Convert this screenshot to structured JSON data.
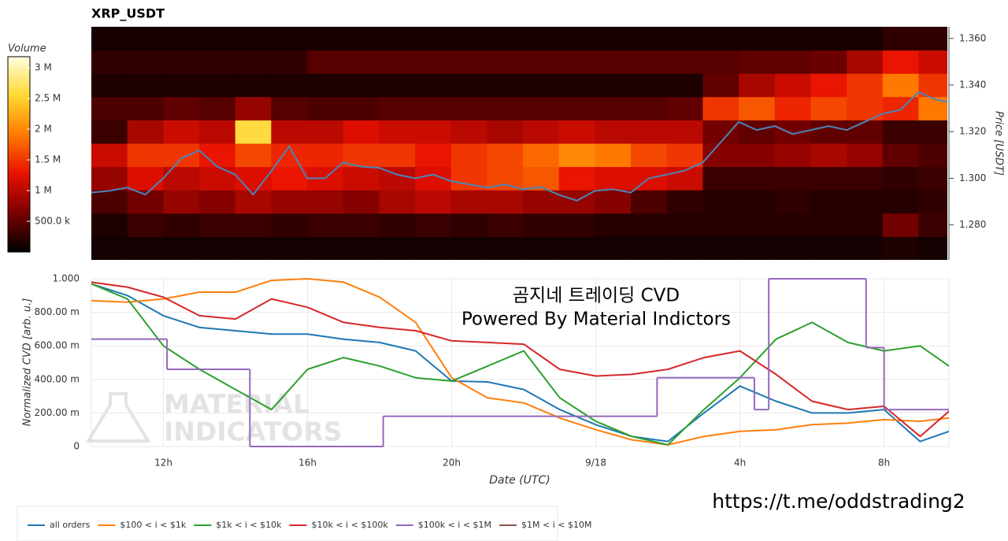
{
  "chart_data": [
    {
      "type": "heatmap",
      "title": "XRP_USDT",
      "xlim": [
        10,
        33.8
      ],
      "x_bins": [
        10,
        11,
        12,
        13,
        14,
        15,
        16,
        17,
        18,
        19,
        20,
        21,
        22,
        23,
        24,
        25,
        26,
        27,
        28,
        29,
        30,
        31,
        32,
        33,
        34
      ],
      "ylim": [
        1.265,
        1.365
      ],
      "y_bins": [
        1.265,
        1.275,
        1.285,
        1.295,
        1.305,
        1.315,
        1.325,
        1.335,
        1.345,
        1.355,
        1.365
      ],
      "yticks": [
        {
          "value": 1.28,
          "label": "1.280"
        },
        {
          "value": 1.3,
          "label": "1.300"
        },
        {
          "value": 1.32,
          "label": "1.320"
        },
        {
          "value": 1.34,
          "label": "1.340"
        },
        {
          "value": 1.36,
          "label": "1.360"
        }
      ],
      "ylabel": "Price [USDT]",
      "zlabel": "Volume",
      "zlim": [
        0,
        3180000
      ],
      "zticks": [
        {
          "value": 500000,
          "label": "500.0 k"
        },
        {
          "value": 1000000,
          "label": "1 M"
        },
        {
          "value": 1500000,
          "label": "1.5 M"
        },
        {
          "value": 2000000,
          "label": "2 M"
        },
        {
          "value": 2500000,
          "label": "2.5 M"
        },
        {
          "value": 3000000,
          "label": "3 M"
        }
      ],
      "colorscale": [
        "#000000",
        "#7a0000",
        "#e81000",
        "#ff7a00",
        "#ffd830",
        "#ffffe0"
      ],
      "values": [
        [
          100000,
          100000,
          100000,
          100000,
          100000,
          100000,
          100000,
          100000,
          100000,
          100000,
          100000,
          100000,
          100000,
          100000,
          100000,
          100000,
          100000,
          100000,
          100000,
          100000,
          100000,
          100000,
          150000,
          100000
        ],
        [
          150000,
          300000,
          250000,
          300000,
          300000,
          250000,
          300000,
          300000,
          250000,
          300000,
          250000,
          300000,
          250000,
          250000,
          200000,
          200000,
          200000,
          200000,
          200000,
          200000,
          200000,
          200000,
          600000,
          300000
        ],
        [
          400000,
          600000,
          800000,
          700000,
          900000,
          800000,
          800000,
          700000,
          900000,
          1000000,
          900000,
          900000,
          800000,
          800000,
          700000,
          400000,
          250000,
          200000,
          200000,
          250000,
          200000,
          200000,
          200000,
          250000
        ],
        [
          800000,
          1200000,
          1000000,
          1100000,
          1200000,
          1300000,
          1200000,
          1100000,
          1000000,
          1200000,
          1500000,
          1600000,
          1700000,
          1300000,
          1200000,
          1200000,
          1100000,
          300000,
          300000,
          300000,
          300000,
          300000,
          250000,
          300000
        ],
        [
          1100000,
          1500000,
          1500000,
          1300000,
          1600000,
          1400000,
          1400000,
          1500000,
          1500000,
          1300000,
          1500000,
          1600000,
          1800000,
          2000000,
          1900000,
          1600000,
          1500000,
          700000,
          700000,
          800000,
          900000,
          800000,
          500000,
          400000
        ],
        [
          300000,
          900000,
          1100000,
          1000000,
          2600000,
          1000000,
          1000000,
          1200000,
          1100000,
          1100000,
          1000000,
          900000,
          1000000,
          1100000,
          1000000,
          1000000,
          1000000,
          600000,
          500000,
          600000,
          500000,
          500000,
          300000,
          300000
        ],
        [
          400000,
          400000,
          500000,
          450000,
          800000,
          450000,
          400000,
          400000,
          450000,
          450000,
          450000,
          450000,
          450000,
          450000,
          450000,
          450000,
          500000,
          1500000,
          1700000,
          1400000,
          1600000,
          1500000,
          1400000,
          1900000
        ],
        [
          150000,
          150000,
          150000,
          150000,
          150000,
          150000,
          150000,
          150000,
          150000,
          150000,
          150000,
          150000,
          150000,
          150000,
          150000,
          150000,
          150000,
          500000,
          900000,
          1100000,
          1300000,
          1500000,
          1900000,
          1500000
        ],
        [
          250000,
          250000,
          250000,
          250000,
          250000,
          250000,
          450000,
          450000,
          450000,
          450000,
          450000,
          450000,
          450000,
          450000,
          450000,
          450000,
          450000,
          450000,
          500000,
          500000,
          550000,
          900000,
          1300000,
          1100000
        ],
        [
          120000,
          120000,
          120000,
          120000,
          120000,
          120000,
          120000,
          120000,
          120000,
          120000,
          120000,
          120000,
          120000,
          120000,
          120000,
          120000,
          120000,
          120000,
          120000,
          120000,
          120000,
          120000,
          250000,
          250000
        ]
      ],
      "line": {
        "color": "#4a86b8",
        "x": [
          10,
          10.5,
          11,
          11.5,
          12,
          12.5,
          13,
          13.5,
          14,
          14.5,
          15,
          15.5,
          16,
          16.5,
          17,
          17.5,
          18,
          18.5,
          19,
          19.5,
          20,
          20.5,
          21,
          21.5,
          22,
          22.5,
          23,
          23.5,
          24,
          24.5,
          25,
          25.5,
          26,
          26.5,
          27,
          27.5,
          28,
          28.5,
          29,
          29.5,
          30,
          30.5,
          31,
          31.5,
          32,
          32.5,
          33,
          33.5,
          33.8
        ],
        "values": [
          1.2939,
          1.2946,
          1.296,
          1.293,
          1.3,
          1.3085,
          1.312,
          1.305,
          1.3016,
          1.293,
          1.303,
          1.3137,
          1.3,
          1.3,
          1.3068,
          1.305,
          1.3045,
          1.3016,
          1.3,
          1.3016,
          1.2988,
          1.2974,
          1.296,
          1.2974,
          1.2953,
          1.2963,
          1.2929,
          1.2904,
          1.2946,
          1.2953,
          1.2939,
          1.3,
          1.3016,
          1.3033,
          1.3068,
          1.3155,
          1.3242,
          1.3207,
          1.3224,
          1.319,
          1.3207,
          1.3224,
          1.3207,
          1.3242,
          1.3277,
          1.3294,
          1.337,
          1.3336,
          1.3329
        ]
      }
    },
    {
      "type": "line",
      "annotations": [
        "곰지네 트레이딩 CVD",
        "Powered By Material Indictors"
      ],
      "watermark": [
        "MATERIAL",
        "INDICATORS"
      ],
      "xlabel": "Date (UTC)",
      "ylabel": "Normalized CVD [arb. u.]",
      "xlim": [
        10,
        33.8
      ],
      "xticks": [
        {
          "value": 12,
          "label": "12h"
        },
        {
          "value": 16,
          "label": "16h"
        },
        {
          "value": 20,
          "label": "20h"
        },
        {
          "value": 24,
          "label": "9/18"
        },
        {
          "value": 28,
          "label": "4h"
        },
        {
          "value": 32,
          "label": "8h"
        }
      ],
      "ylim": [
        0,
        1
      ],
      "yticks": [
        0,
        {
          "value": 0.2,
          "label": "200.00 m"
        },
        {
          "value": 0.4,
          "label": "400.00 m"
        },
        {
          "value": 0.6,
          "label": "600.00 m"
        },
        {
          "value": 0.8,
          "label": "800.00 m"
        },
        {
          "value": 1,
          "label": "1.000"
        }
      ],
      "grid": true,
      "legend": "bottom",
      "x": [
        10,
        11,
        12,
        13,
        14,
        15,
        16,
        17,
        18,
        19,
        20,
        21,
        22,
        23,
        24,
        25,
        26,
        27,
        28,
        29,
        30,
        31,
        32,
        33,
        33.8
      ],
      "series": [
        {
          "name": "all orders",
          "color": "#1f77b4",
          "values": [
            0.97,
            0.9,
            0.78,
            0.71,
            0.69,
            0.67,
            0.67,
            0.64,
            0.62,
            0.57,
            0.39,
            0.385,
            0.34,
            0.22,
            0.13,
            0.06,
            0.03,
            0.2,
            0.36,
            0.27,
            0.2,
            0.2,
            0.22,
            0.03,
            0.09
          ]
        },
        {
          "name": "$100 < i < $1k",
          "color": "#ff7f0e",
          "values": [
            0.87,
            0.86,
            0.88,
            0.92,
            0.92,
            0.99,
            1.0,
            0.98,
            0.89,
            0.74,
            0.41,
            0.29,
            0.26,
            0.17,
            0.1,
            0.04,
            0.01,
            0.06,
            0.09,
            0.1,
            0.13,
            0.14,
            0.16,
            0.15,
            0.17
          ]
        },
        {
          "name": "$1k < i < $10k",
          "color": "#2ca02c",
          "values": [
            0.97,
            0.88,
            0.6,
            0.46,
            0.34,
            0.22,
            0.46,
            0.53,
            0.48,
            0.41,
            0.39,
            0.48,
            0.57,
            0.29,
            0.15,
            0.06,
            0.01,
            0.22,
            0.41,
            0.64,
            0.74,
            0.62,
            0.57,
            0.6,
            0.48
          ]
        },
        {
          "name": "$10k < i < $100k",
          "color": "#d62728",
          "values": [
            0.98,
            0.95,
            0.89,
            0.78,
            0.76,
            0.88,
            0.83,
            0.74,
            0.71,
            0.69,
            0.63,
            0.62,
            0.61,
            0.46,
            0.42,
            0.43,
            0.46,
            0.53,
            0.57,
            0.43,
            0.27,
            0.22,
            0.24,
            0.06,
            0.21
          ]
        },
        {
          "name": "$100k < i < $1M",
          "color": "#9467bd",
          "step": "post",
          "x": [
            10,
            12.1,
            14.4,
            18.1,
            25.7,
            28.4,
            28.8,
            31.5,
            32.0
          ],
          "values": [
            0.64,
            0.46,
            0,
            0.18,
            0.41,
            0.22,
            1.0,
            0.59,
            0.22
          ]
        },
        {
          "name": "$1M < i < $10M",
          "color": "#8c564b",
          "values": [
            null,
            null,
            null,
            null,
            null,
            null,
            null,
            null,
            null,
            null,
            null,
            null,
            null,
            null,
            null,
            null,
            null,
            null,
            null,
            null,
            null,
            null,
            null,
            null,
            null
          ]
        }
      ]
    }
  ],
  "footer_text": "https://t.me/oddstrading2"
}
